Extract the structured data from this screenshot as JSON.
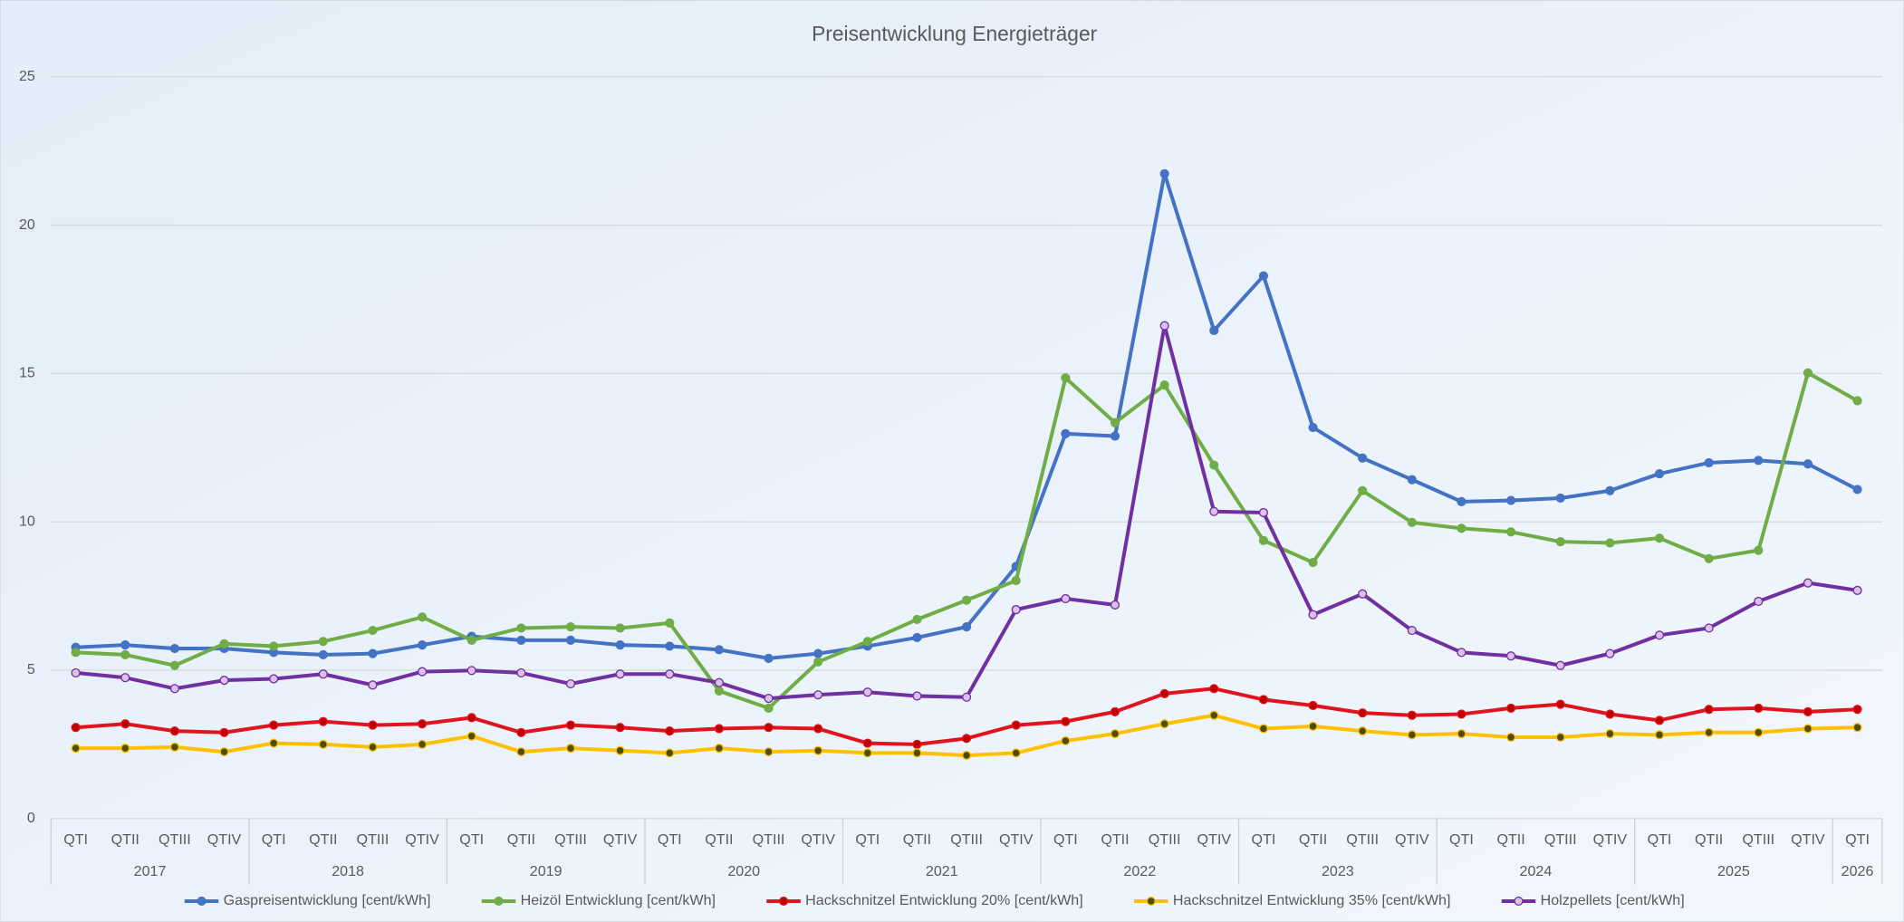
{
  "chart_data": {
    "type": "line",
    "title": "Preisentwicklung Energieträger",
    "categories": [
      "QTI",
      "QTII",
      "QTIII",
      "QTIV",
      "QTI",
      "QTII",
      "QTIII",
      "QTIV",
      "QTI",
      "QTII",
      "QTIII",
      "QTIV",
      "QTI",
      "QTII",
      "QTIII",
      "QTIV",
      "QTI",
      "QTII",
      "QTIII",
      "QTIV",
      "QTI",
      "QTII",
      "QTIII",
      "QTIV",
      "QTI",
      "QTII",
      "QTIII",
      "QTIV",
      "QTI",
      "QTII",
      "QTIII",
      "QTIV",
      "QTI",
      "QTII",
      "QTIII",
      "QTIV",
      "QTI"
    ],
    "years": [
      "2017",
      "2018",
      "2019",
      "2020",
      "2021",
      "2022",
      "2023",
      "2024",
      "2025",
      "2026"
    ],
    "ylim": [
      0,
      25
    ],
    "yticks": [
      0,
      5,
      10,
      15,
      20,
      25
    ],
    "grid": true,
    "legend": "bottom",
    "series": [
      {
        "name": "Gaspreisentwicklung [cent/kWh]",
        "color": "#4472c4",
        "marker_color": "#4472c4",
        "values": [
          5.77,
          5.85,
          5.73,
          5.73,
          5.6,
          5.52,
          5.56,
          5.85,
          6.14,
          6.01,
          6.01,
          5.85,
          5.81,
          5.69,
          5.4,
          5.56,
          5.81,
          6.1,
          6.46,
          8.5,
          12.97,
          12.89,
          21.73,
          16.45,
          18.29,
          13.18,
          12.15,
          11.42,
          10.68,
          10.72,
          10.8,
          11.05,
          11.62,
          11.99,
          12.07,
          11.95,
          11.09
        ]
      },
      {
        "name": "Heizöl Entwicklung [cent/kWh]",
        "color": "#70ad47",
        "marker_color": "#70ad47",
        "values": [
          5.6,
          5.52,
          5.16,
          5.89,
          5.81,
          5.97,
          6.34,
          6.79,
          6.01,
          6.42,
          6.46,
          6.42,
          6.59,
          4.3,
          3.72,
          5.28,
          5.97,
          6.71,
          7.36,
          8.02,
          14.85,
          13.34,
          14.61,
          11.91,
          9.37,
          8.63,
          11.05,
          9.98,
          9.78,
          9.66,
          9.33,
          9.29,
          9.45,
          8.76,
          9.04,
          15.02,
          14.08
        ]
      },
      {
        "name": "Hackschnitzel Entwicklung  20% [cent/kWh]",
        "color": "#e0141e",
        "marker_color": "#c00000",
        "values": [
          3.07,
          3.19,
          2.95,
          2.9,
          3.15,
          3.27,
          3.15,
          3.19,
          3.4,
          2.9,
          3.15,
          3.07,
          2.95,
          3.03,
          3.07,
          3.03,
          2.54,
          2.5,
          2.7,
          3.15,
          3.27,
          3.6,
          4.21,
          4.38,
          4.01,
          3.81,
          3.56,
          3.48,
          3.52,
          3.72,
          3.85,
          3.52,
          3.31,
          3.68,
          3.72,
          3.6,
          3.68
        ]
      },
      {
        "name": "Hackschnitzel Entwicklung  35% [cent/kWh]",
        "color": "#ffc000",
        "marker_color": "#4d4d00",
        "values": [
          2.37,
          2.37,
          2.41,
          2.25,
          2.54,
          2.5,
          2.41,
          2.5,
          2.78,
          2.25,
          2.37,
          2.29,
          2.21,
          2.37,
          2.25,
          2.29,
          2.21,
          2.21,
          2.13,
          2.21,
          2.62,
          2.86,
          3.19,
          3.48,
          3.03,
          3.11,
          2.95,
          2.82,
          2.86,
          2.74,
          2.74,
          2.86,
          2.82,
          2.9,
          2.9,
          3.03,
          3.07
        ]
      },
      {
        "name": "Holzpellets [cent/kWh]",
        "color": "#7030a0",
        "marker_color": "#dcc0e8",
        "values": [
          4.91,
          4.75,
          4.38,
          4.66,
          4.71,
          4.87,
          4.5,
          4.95,
          4.99,
          4.91,
          4.54,
          4.87,
          4.87,
          4.58,
          4.05,
          4.17,
          4.26,
          4.13,
          4.09,
          7.04,
          7.41,
          7.2,
          16.61,
          10.35,
          10.31,
          6.87,
          7.57,
          6.34,
          5.6,
          5.48,
          5.16,
          5.56,
          6.18,
          6.42,
          7.32,
          7.94,
          7.69
        ]
      }
    ]
  }
}
